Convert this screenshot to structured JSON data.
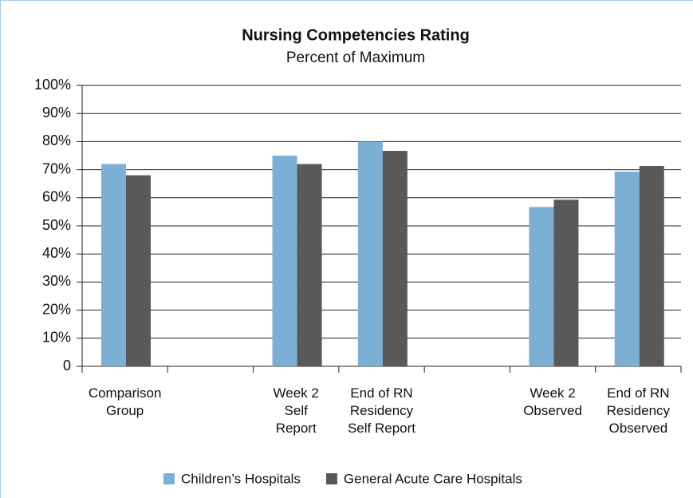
{
  "chart_data": {
    "type": "bar",
    "title": "Nursing Competencies Rating",
    "subtitle": "Percent of Maximum",
    "categories": [
      "Comparison\nGroup",
      null,
      "Week 2\nSelf\nReport",
      "End of RN\nResidency\nSelf Report",
      null,
      "Week 2\nObserved",
      "End of RN\nResidency\nObserved"
    ],
    "series": [
      {
        "name": "Children’s Hospitals",
        "color": "#7bafd4",
        "values": [
          72,
          null,
          75,
          80,
          null,
          56.7,
          69.3
        ]
      },
      {
        "name": "General Acute Care Hospitals",
        "color": "#595959",
        "values": [
          68,
          null,
          72,
          76.7,
          null,
          59.3,
          71.3
        ]
      }
    ],
    "ylim": [
      0,
      100
    ],
    "yticks": [
      0,
      {
        "value": 10,
        "label": "10%"
      },
      {
        "value": 20,
        "label": "20%"
      },
      {
        "value": 30,
        "label": "30%"
      },
      {
        "value": 40,
        "label": "40%"
      },
      {
        "value": 50,
        "label": "50%"
      },
      {
        "value": 60,
        "label": "60%"
      },
      {
        "value": 70,
        "label": "70%"
      },
      {
        "value": 80,
        "label": "80%"
      },
      {
        "value": 90,
        "label": "90%"
      },
      {
        "value": 100,
        "label": "100%"
      }
    ],
    "grid": true,
    "legend": "bottom"
  }
}
